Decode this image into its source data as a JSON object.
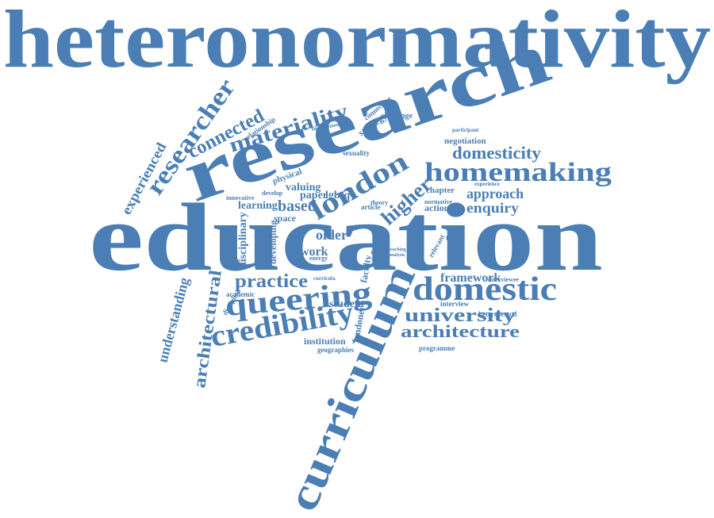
{
  "words": [
    "heteronormativity",
    "education",
    "research",
    "curriculum",
    "homemaking",
    "domestic",
    "queering",
    "credibility",
    "university",
    "architecture",
    "practice",
    "london",
    "higher",
    "domesticity",
    "approach",
    "enquiry",
    "based",
    "connected",
    "materiality",
    "researcher",
    "experienced",
    "understanding",
    "architectural",
    "framework",
    "older",
    "work",
    "valuing",
    "paper",
    "lgbtq",
    "learning",
    "space",
    "disciplinary",
    "developing",
    "student",
    "institution",
    "geographies",
    "programme",
    "interview",
    "heterosexual",
    "interviewee",
    "queer",
    "thesis",
    "relevant",
    "action",
    "normative",
    "chapter",
    "negotiation",
    "participant",
    "experience",
    "challenge",
    "strategy",
    "connecting",
    "environment",
    "relationship",
    "sexuality",
    "physical",
    "develop",
    "innovative",
    "academic",
    "discipline",
    "londoner",
    "context",
    "faculty",
    "article",
    "theory",
    "energy",
    "curricula",
    "teaching",
    "analysis"
  ]
}
